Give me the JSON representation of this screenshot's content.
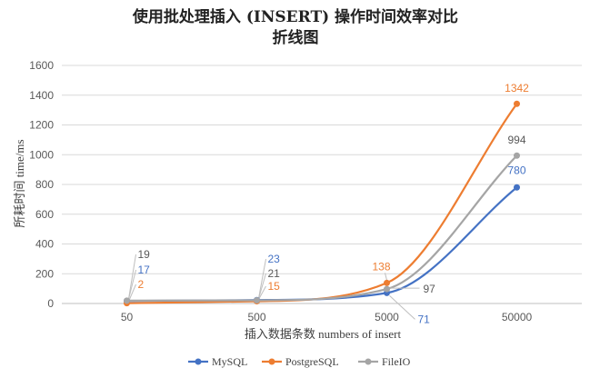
{
  "chart_data": {
    "type": "line",
    "title": [
      "使用批处理插入 (INSERT) 操作时间效率对比",
      "折线图"
    ],
    "xlabel": "插入数据条数 numbers of insert",
    "ylabel": "所耗时间 time/ms",
    "categories": [
      "50",
      "500",
      "5000",
      "50000"
    ],
    "ylim": [
      0,
      1600
    ],
    "yticks": [
      "0",
      "200",
      "400",
      "600",
      "800",
      "1000",
      "1200",
      "1400",
      "1600"
    ],
    "grid": true,
    "legend_position": "bottom",
    "smooth": true,
    "series": [
      {
        "name": "MySQL",
        "color": "#4472C4",
        "values": [
          17,
          23,
          71,
          780
        ],
        "labels": [
          "17",
          "23",
          "71",
          "780"
        ]
      },
      {
        "name": "PostgreSQL",
        "color": "#ED7D31",
        "values": [
          2,
          15,
          138,
          1342
        ],
        "labels": [
          "2",
          "15",
          "138",
          "1342"
        ]
      },
      {
        "name": "FileIO",
        "color": "#A5A5A5",
        "values": [
          19,
          21,
          97,
          994
        ],
        "labels": [
          "19",
          "21",
          "97",
          "994"
        ]
      }
    ]
  }
}
